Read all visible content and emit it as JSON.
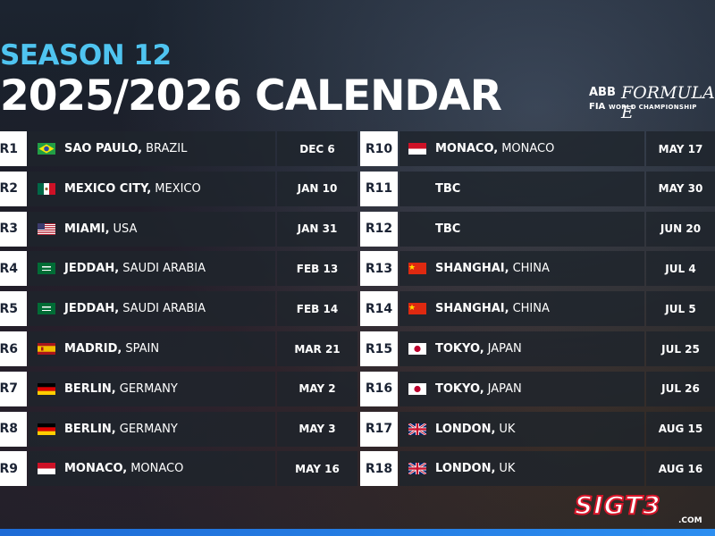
{
  "header": {
    "season": "SEASON 12",
    "title": "2025/2026 CALENDAR"
  },
  "logo": {
    "abb": "ABB",
    "formula": "FORMULA E",
    "fia": "FIA",
    "championship": "WORLD CHAMPIONSHIP"
  },
  "rounds_left": [
    {
      "round": "R1",
      "city": "SAO PAULO,",
      "country": "BRAZIL",
      "date": "DEC 6",
      "flag": "brazil-flag-icon"
    },
    {
      "round": "R2",
      "city": "MEXICO CITY,",
      "country": "MEXICO",
      "date": "JAN 10",
      "flag": "mexico-flag-icon"
    },
    {
      "round": "R3",
      "city": "MIAMI,",
      "country": "USA",
      "date": "JAN 31",
      "flag": "usa-flag-icon"
    },
    {
      "round": "R4",
      "city": "JEDDAH,",
      "country": "SAUDI ARABIA",
      "date": "FEB 13",
      "flag": "saudi-flag-icon"
    },
    {
      "round": "R5",
      "city": "JEDDAH,",
      "country": "SAUDI ARABIA",
      "date": "FEB 14",
      "flag": "saudi-flag-icon"
    },
    {
      "round": "R6",
      "city": "MADRID,",
      "country": "SPAIN",
      "date": "MAR 21",
      "flag": "spain-flag-icon"
    },
    {
      "round": "R7",
      "city": "BERLIN,",
      "country": "GERMANY",
      "date": "MAY 2",
      "flag": "germany-flag-icon"
    },
    {
      "round": "R8",
      "city": "BERLIN,",
      "country": "GERMANY",
      "date": "MAY 3",
      "flag": "germany-flag-icon"
    },
    {
      "round": "R9",
      "city": "MONACO,",
      "country": "MONACO",
      "date": "MAY 16",
      "flag": "monaco-flag-icon"
    }
  ],
  "rounds_right": [
    {
      "round": "R10",
      "city": "MONACO,",
      "country": "MONACO",
      "date": "MAY 17",
      "flag": "monaco-flag-icon"
    },
    {
      "round": "R11",
      "city": "TBC",
      "country": "",
      "date": "MAY 30",
      "flag": ""
    },
    {
      "round": "R12",
      "city": "TBC",
      "country": "",
      "date": "JUN 20",
      "flag": ""
    },
    {
      "round": "R13",
      "city": "SHANGHAI,",
      "country": "CHINA",
      "date": "JUL 4",
      "flag": "china-flag-icon"
    },
    {
      "round": "R14",
      "city": "SHANGHAI,",
      "country": "CHINA",
      "date": "JUL 5",
      "flag": "china-flag-icon"
    },
    {
      "round": "R15",
      "city": "TOKYO,",
      "country": "JAPAN",
      "date": "JUL 25",
      "flag": "japan-flag-icon"
    },
    {
      "round": "R16",
      "city": "TOKYO,",
      "country": "JAPAN",
      "date": "JUL 26",
      "flag": "japan-flag-icon"
    },
    {
      "round": "R17",
      "city": "LONDON,",
      "country": "UK",
      "date": "AUG 15",
      "flag": "uk-flag-icon"
    },
    {
      "round": "R18",
      "city": "LONDON,",
      "country": "UK",
      "date": "AUG 16",
      "flag": "uk-flag-icon"
    }
  ],
  "watermark": {
    "name": "SIGT3",
    "suffix": ".COM"
  },
  "colors": {
    "accent": "#4fc4f0",
    "watermark_red": "#d8162a"
  }
}
